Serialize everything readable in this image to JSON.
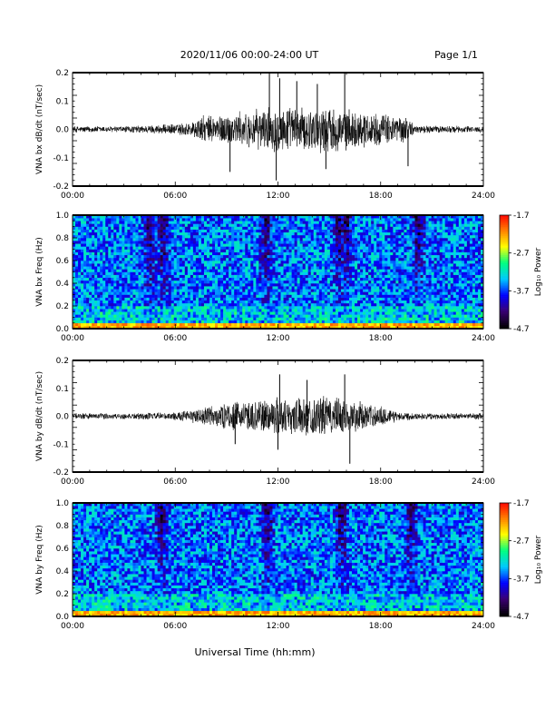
{
  "header": {
    "date_range": "2020/11/06  00:00-24:00 UT",
    "page": "Page 1/1"
  },
  "footer": {
    "xlabel": "Universal Time (hh:mm)"
  },
  "colors": {
    "trace": "#000000",
    "colormap": [
      "#000000",
      "#3a0070",
      "#0000ff",
      "#00c8ff",
      "#00ff80",
      "#ffff00",
      "#ff8000",
      "#ff0000"
    ]
  },
  "chart_data": [
    {
      "type": "line",
      "ylabel": "VNA bx dB/dt (nT/sec)",
      "xlim": [
        "00:00",
        "24:00"
      ],
      "xticks": [
        "00:00",
        "06:00",
        "12:00",
        "18:00",
        "24:00"
      ],
      "ylim": [
        -0.2,
        0.2
      ],
      "yticks": [
        "0.2",
        "0.1",
        "0.0",
        "-0.1",
        "-0.2"
      ],
      "envelope": {
        "x_hours": [
          0,
          3,
          6,
          7,
          7.5,
          9,
          10.5,
          12,
          13.5,
          15,
          16.5,
          18,
          19.5,
          20,
          24
        ],
        "amplitude": [
          0.012,
          0.012,
          0.02,
          0.03,
          0.05,
          0.06,
          0.07,
          0.09,
          0.08,
          0.09,
          0.07,
          0.06,
          0.05,
          0.015,
          0.012
        ]
      },
      "spikes": [
        {
          "t": 11.5,
          "y": 0.2
        },
        {
          "t": 12.1,
          "y": 0.18
        },
        {
          "t": 15.9,
          "y": 0.2
        },
        {
          "t": 14.3,
          "y": 0.16
        },
        {
          "t": 13.1,
          "y": 0.17
        },
        {
          "t": 11.9,
          "y": -0.18
        },
        {
          "t": 9.2,
          "y": -0.15
        },
        {
          "t": 14.8,
          "y": -0.14
        },
        {
          "t": 19.6,
          "y": -0.13
        }
      ]
    },
    {
      "type": "heatmap",
      "ylabel": "VNA bx Freq (Hz)",
      "xlim": [
        "00:00",
        "24:00"
      ],
      "xticks": [
        "00:00",
        "06:00",
        "12:00",
        "18:00",
        "24:00"
      ],
      "ylim": [
        0.0,
        1.0
      ],
      "yticks": [
        "1.0",
        "0.8",
        "0.6",
        "0.4",
        "0.2",
        "0.0"
      ],
      "colorbar": {
        "label": "Log₁₀ Power",
        "min": -4.7,
        "max": -1.7,
        "ticks": [
          "-1.7",
          "-2.7",
          "-3.7",
          "-4.7"
        ]
      },
      "background_log_power": -3.6,
      "low_freq_band": {
        "max_hz": 0.06,
        "log_power": -2.3
      },
      "quiet_stripes_hours": [
        4.5,
        5.3,
        11.3,
        15.6,
        16.0,
        20.2
      ]
    },
    {
      "type": "line",
      "ylabel": "VNA by dB/dt (nT/sec)",
      "xlim": [
        "00:00",
        "24:00"
      ],
      "xticks": [
        "00:00",
        "06:00",
        "12:00",
        "18:00",
        "24:00"
      ],
      "ylim": [
        -0.2,
        0.2
      ],
      "yticks": [
        "0.2",
        "0.1",
        "0.0",
        "-0.1",
        "-0.2"
      ],
      "envelope": {
        "x_hours": [
          0,
          3,
          6,
          7,
          8,
          9,
          10.5,
          12,
          13.5,
          15,
          16.5,
          18,
          19,
          20,
          24
        ],
        "amplitude": [
          0.012,
          0.012,
          0.015,
          0.025,
          0.04,
          0.05,
          0.06,
          0.075,
          0.07,
          0.08,
          0.06,
          0.04,
          0.02,
          0.012,
          0.012
        ]
      },
      "spikes": [
        {
          "t": 12.1,
          "y": 0.15
        },
        {
          "t": 15.9,
          "y": 0.15
        },
        {
          "t": 13.7,
          "y": 0.13
        },
        {
          "t": 16.2,
          "y": -0.17
        },
        {
          "t": 12.0,
          "y": -0.12
        },
        {
          "t": 9.5,
          "y": -0.1
        }
      ]
    },
    {
      "type": "heatmap",
      "ylabel": "VNA by Freq (Hz)",
      "xlim": [
        "00:00",
        "24:00"
      ],
      "xticks": [
        "00:00",
        "06:00",
        "12:00",
        "18:00",
        "24:00"
      ],
      "ylim": [
        0.0,
        1.0
      ],
      "yticks": [
        "1.0",
        "0.8",
        "0.6",
        "0.4",
        "0.2",
        "0.0"
      ],
      "colorbar": {
        "label": "Log₁₀ Power",
        "min": -4.7,
        "max": -1.7,
        "ticks": [
          "-1.7",
          "-2.7",
          "-3.7",
          "-4.7"
        ]
      },
      "background_log_power": -3.6,
      "low_freq_band": {
        "max_hz": 0.06,
        "log_power": -2.3
      },
      "quiet_stripes_hours": [
        5.2,
        11.4,
        15.7,
        19.8
      ]
    }
  ]
}
